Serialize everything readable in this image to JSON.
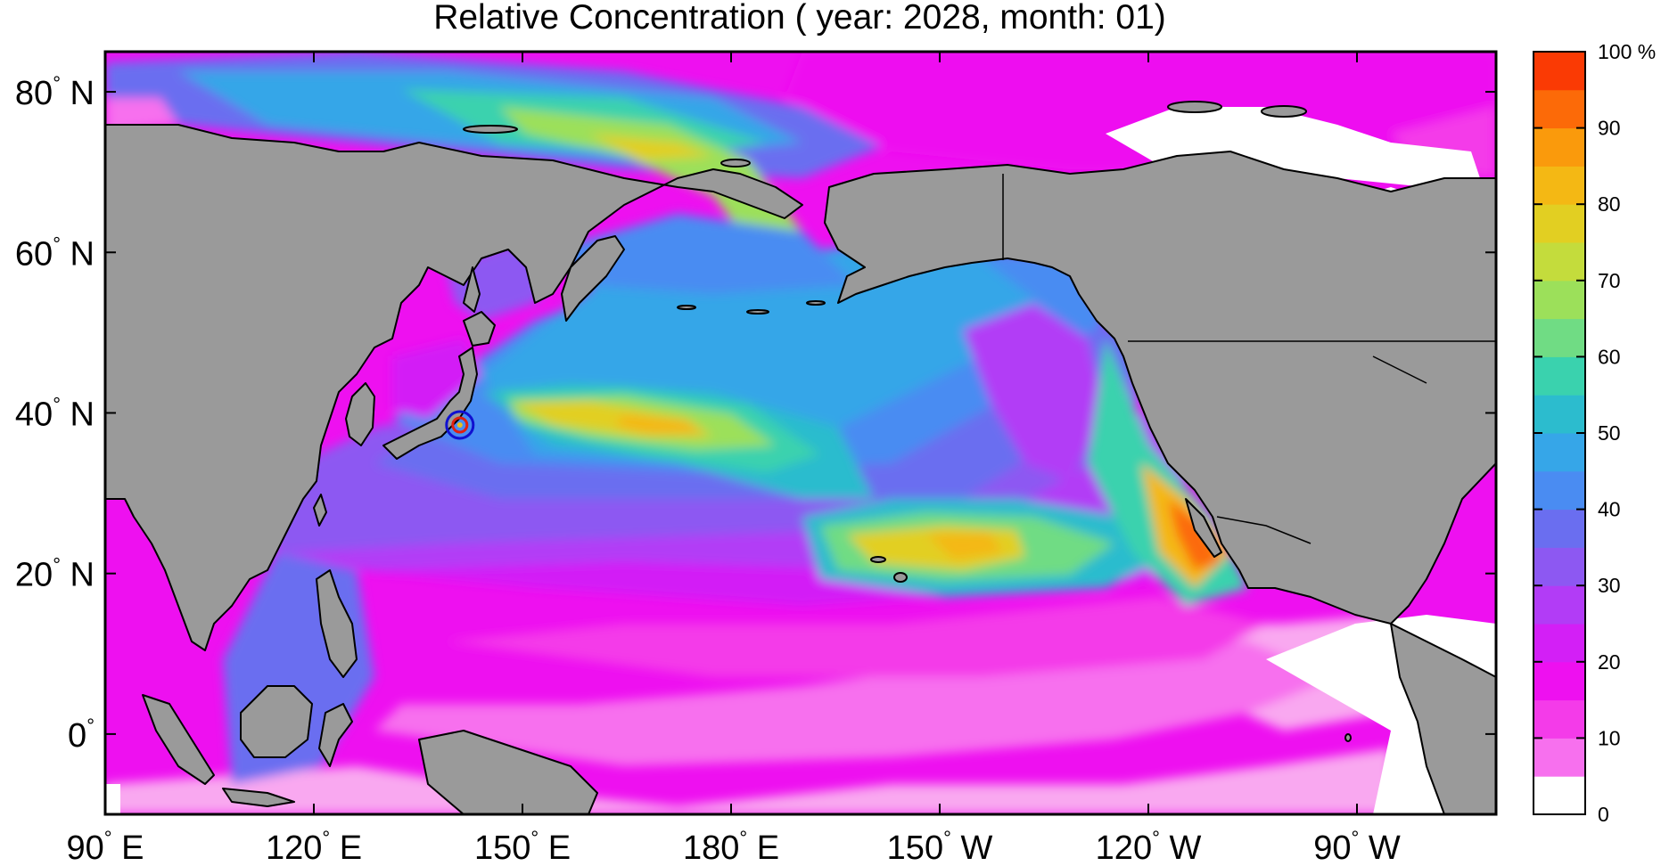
{
  "title": "Relative Concentration ( year: 2028, month: 01)",
  "map": {
    "lon_range": [
      90,
      290
    ],
    "lat_range": [
      -10,
      85
    ],
    "x_ticks": [
      {
        "lon": 90,
        "label": "90",
        "hemi": "E"
      },
      {
        "lon": 120,
        "label": "120",
        "hemi": "E"
      },
      {
        "lon": 150,
        "label": "150",
        "hemi": "E"
      },
      {
        "lon": 180,
        "label": "180",
        "hemi": "E"
      },
      {
        "lon": 210,
        "label": "150",
        "hemi": "W"
      },
      {
        "lon": 240,
        "label": "120",
        "hemi": "W"
      },
      {
        "lon": 270,
        "label": "90",
        "hemi": "W"
      }
    ],
    "y_ticks": [
      {
        "lat": 80,
        "label": "80",
        "hemi": "N"
      },
      {
        "lat": 60,
        "label": "60",
        "hemi": "N"
      },
      {
        "lat": 40,
        "label": "40",
        "hemi": "N"
      },
      {
        "lat": 20,
        "label": "20",
        "hemi": "N"
      },
      {
        "lat": 0,
        "label": "0",
        "hemi": ""
      }
    ],
    "source_marker": {
      "lon": 141,
      "lat": 38.5,
      "ring_color": "#1010d0",
      "dot_color": "#e02010"
    }
  },
  "colorbar": {
    "unit": "%",
    "levels": [
      {
        "value": 0,
        "color": "#ffffff"
      },
      {
        "value": 5,
        "color": "#f9a8f0"
      },
      {
        "value": 10,
        "color": "#f770ee"
      },
      {
        "value": 15,
        "color": "#f43be9"
      },
      {
        "value": 20,
        "color": "#ee10f0"
      },
      {
        "value": 25,
        "color": "#d31ff6"
      },
      {
        "value": 30,
        "color": "#b23cf6"
      },
      {
        "value": 35,
        "color": "#8d58f2"
      },
      {
        "value": 40,
        "color": "#6a6ef0"
      },
      {
        "value": 45,
        "color": "#4a8cf2"
      },
      {
        "value": 50,
        "color": "#36a6e8"
      },
      {
        "value": 55,
        "color": "#2cbcce"
      },
      {
        "value": 60,
        "color": "#3ad2ae"
      },
      {
        "value": 65,
        "color": "#70dc84"
      },
      {
        "value": 70,
        "color": "#9ce05a"
      },
      {
        "value": 75,
        "color": "#c4dc3c"
      },
      {
        "value": 80,
        "color": "#e2cf22"
      },
      {
        "value": 85,
        "color": "#f4b814"
      },
      {
        "value": 90,
        "color": "#fa9a0c"
      },
      {
        "value": 95,
        "color": "#fc6a08"
      },
      {
        "value": 100,
        "color": "#fa3a04"
      }
    ],
    "tick_labels": [
      "0",
      "10",
      "20",
      "30",
      "40",
      "50",
      "60",
      "70",
      "80",
      "90",
      "100 %"
    ],
    "tick_values": [
      0,
      10,
      20,
      30,
      40,
      50,
      60,
      70,
      80,
      90,
      100
    ]
  },
  "colors": {
    "land": "#9a9a9a",
    "coast": "#000000",
    "ocean_base": "#ee10f0"
  }
}
